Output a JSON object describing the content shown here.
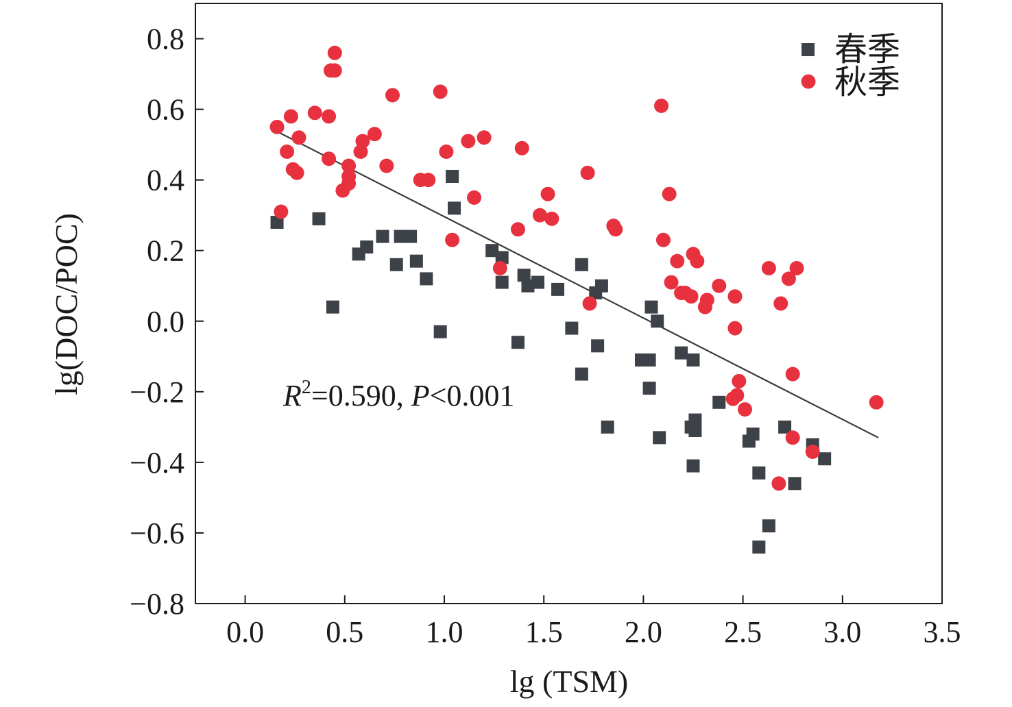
{
  "chart_data": {
    "type": "scatter",
    "xlabel": "lg (TSM)",
    "ylabel": "lg(DOC/POC)",
    "xlim": [
      -0.25,
      3.5
    ],
    "ylim": [
      -0.8,
      0.9
    ],
    "x_ticks": [
      0.0,
      0.5,
      1.0,
      1.5,
      2.0,
      2.5,
      3.0,
      3.5
    ],
    "x_tick_labels": [
      "0.0",
      "0.5",
      "1.0",
      "1.5",
      "2.0",
      "2.5",
      "3.0",
      "3.5"
    ],
    "y_ticks": [
      -0.8,
      -0.6,
      -0.4,
      -0.2,
      0.0,
      0.2,
      0.4,
      0.6,
      0.8
    ],
    "y_tick_labels": [
      "−0.8",
      "−0.6",
      "−0.4",
      "−0.2",
      "0.0",
      "0.2",
      "0.4",
      "0.6",
      "0.8"
    ],
    "grid": false,
    "legend_position": "top-right",
    "annotation": {
      "r_symbol": "R",
      "r_exponent": "2",
      "r_value": "=0.590, ",
      "p_symbol": "P",
      "p_value": "<0.001"
    },
    "fit_line": {
      "x": [
        0.15,
        3.18
      ],
      "y": [
        0.54,
        -0.33
      ],
      "color": "#3a3a3a"
    },
    "series": [
      {
        "name": "春季",
        "marker": "square",
        "color": "#3d4148",
        "points": [
          [
            0.16,
            0.28
          ],
          [
            0.37,
            0.29
          ],
          [
            0.44,
            0.04
          ],
          [
            0.57,
            0.19
          ],
          [
            0.61,
            0.21
          ],
          [
            0.69,
            0.24
          ],
          [
            0.76,
            0.16
          ],
          [
            0.78,
            0.24
          ],
          [
            0.83,
            0.24
          ],
          [
            0.86,
            0.17
          ],
          [
            0.91,
            0.12
          ],
          [
            0.98,
            -0.03
          ],
          [
            1.04,
            0.41
          ],
          [
            1.05,
            0.32
          ],
          [
            1.24,
            0.2
          ],
          [
            1.29,
            0.18
          ],
          [
            1.29,
            0.11
          ],
          [
            1.37,
            -0.06
          ],
          [
            1.4,
            0.13
          ],
          [
            1.42,
            0.1
          ],
          [
            1.47,
            0.11
          ],
          [
            1.57,
            0.09
          ],
          [
            1.64,
            -0.02
          ],
          [
            1.69,
            0.16
          ],
          [
            1.69,
            -0.15
          ],
          [
            1.76,
            0.08
          ],
          [
            1.77,
            -0.07
          ],
          [
            1.79,
            0.1
          ],
          [
            1.82,
            -0.3
          ],
          [
            1.99,
            -0.11
          ],
          [
            2.03,
            -0.11
          ],
          [
            2.03,
            -0.19
          ],
          [
            2.04,
            0.04
          ],
          [
            2.07,
            0.0
          ],
          [
            2.08,
            -0.33
          ],
          [
            2.19,
            -0.09
          ],
          [
            2.24,
            -0.3
          ],
          [
            2.25,
            -0.41
          ],
          [
            2.25,
            -0.11
          ],
          [
            2.26,
            -0.28
          ],
          [
            2.26,
            -0.31
          ],
          [
            2.38,
            -0.23
          ],
          [
            2.53,
            -0.34
          ],
          [
            2.55,
            -0.32
          ],
          [
            2.58,
            -0.43
          ],
          [
            2.58,
            -0.64
          ],
          [
            2.63,
            -0.58
          ],
          [
            2.71,
            -0.3
          ],
          [
            2.76,
            -0.46
          ],
          [
            2.85,
            -0.35
          ],
          [
            2.91,
            -0.39
          ]
        ]
      },
      {
        "name": "秋季",
        "marker": "circle",
        "color": "#e8313f",
        "points": [
          [
            0.16,
            0.55
          ],
          [
            0.18,
            0.31
          ],
          [
            0.21,
            0.48
          ],
          [
            0.23,
            0.58
          ],
          [
            0.24,
            0.43
          ],
          [
            0.26,
            0.42
          ],
          [
            0.27,
            0.52
          ],
          [
            0.35,
            0.59
          ],
          [
            0.42,
            0.46
          ],
          [
            0.42,
            0.58
          ],
          [
            0.43,
            0.71
          ],
          [
            0.45,
            0.71
          ],
          [
            0.45,
            0.76
          ],
          [
            0.49,
            0.37
          ],
          [
            0.52,
            0.44
          ],
          [
            0.52,
            0.39
          ],
          [
            0.52,
            0.41
          ],
          [
            0.58,
            0.48
          ],
          [
            0.59,
            0.51
          ],
          [
            0.65,
            0.53
          ],
          [
            0.71,
            0.44
          ],
          [
            0.74,
            0.64
          ],
          [
            0.88,
            0.4
          ],
          [
            0.92,
            0.4
          ],
          [
            0.98,
            0.65
          ],
          [
            1.01,
            0.48
          ],
          [
            1.04,
            0.23
          ],
          [
            1.12,
            0.51
          ],
          [
            1.15,
            0.35
          ],
          [
            1.2,
            0.52
          ],
          [
            1.28,
            0.15
          ],
          [
            1.37,
            0.26
          ],
          [
            1.39,
            0.49
          ],
          [
            1.48,
            0.3
          ],
          [
            1.52,
            0.36
          ],
          [
            1.54,
            0.29
          ],
          [
            1.72,
            0.42
          ],
          [
            1.73,
            0.05
          ],
          [
            1.85,
            0.27
          ],
          [
            1.86,
            0.26
          ],
          [
            2.09,
            0.61
          ],
          [
            2.1,
            0.23
          ],
          [
            2.13,
            0.36
          ],
          [
            2.14,
            0.11
          ],
          [
            2.17,
            0.17
          ],
          [
            2.19,
            0.08
          ],
          [
            2.21,
            0.08
          ],
          [
            2.24,
            0.07
          ],
          [
            2.25,
            0.19
          ],
          [
            2.27,
            0.17
          ],
          [
            2.31,
            0.04
          ],
          [
            2.32,
            0.06
          ],
          [
            2.38,
            0.1
          ],
          [
            2.45,
            -0.22
          ],
          [
            2.46,
            -0.02
          ],
          [
            2.46,
            0.07
          ],
          [
            2.47,
            -0.21
          ],
          [
            2.48,
            -0.17
          ],
          [
            2.51,
            -0.25
          ],
          [
            2.63,
            0.15
          ],
          [
            2.68,
            -0.46
          ],
          [
            2.69,
            0.05
          ],
          [
            2.73,
            0.12
          ],
          [
            2.75,
            -0.33
          ],
          [
            2.75,
            -0.15
          ],
          [
            2.77,
            0.15
          ],
          [
            2.85,
            -0.37
          ],
          [
            3.17,
            -0.23
          ]
        ]
      }
    ]
  }
}
